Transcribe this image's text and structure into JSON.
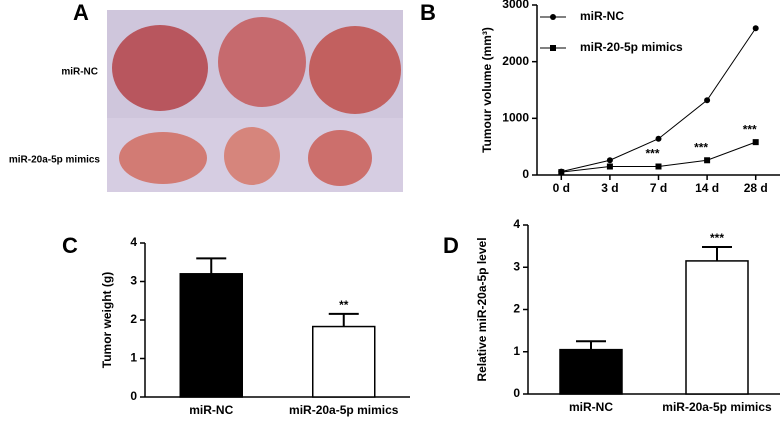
{
  "photo": {
    "panel": "A",
    "row_labels": [
      "miR-NC",
      "miR-20a-5p mimics"
    ]
  },
  "chart_data": [
    {
      "type": "line",
      "panel": "B",
      "y_label": "Tumour volume (mm³)",
      "categories": [
        "0 d",
        "3 d",
        "7 d",
        "14 d",
        "28 d"
      ],
      "series": [
        {
          "name": "miR-NC",
          "color": "#000000",
          "marker": "circle",
          "values": [
            60,
            260,
            640,
            1320,
            2590
          ]
        },
        {
          "name": "miR-20-5p mimics",
          "color": "#000000",
          "marker": "square",
          "values": [
            50,
            150,
            150,
            260,
            580
          ],
          "significance": [
            null,
            null,
            "***",
            "***",
            "***"
          ]
        }
      ],
      "ylim": [
        0,
        3000
      ],
      "yticks": [
        0,
        1000,
        2000,
        3000
      ]
    },
    {
      "type": "bar",
      "panel": "C",
      "y_label": "Tumor weight (g)",
      "categories": [
        "miR-NC",
        "miR-20a-5p mimics"
      ],
      "values": [
        3.2,
        1.83
      ],
      "errors": [
        0.4,
        0.33
      ],
      "colors": [
        "#000000",
        "#ffffff"
      ],
      "significance": [
        null,
        "**"
      ],
      "ylim": [
        0,
        4
      ],
      "yticks": [
        0,
        1,
        2,
        3,
        4
      ]
    },
    {
      "type": "bar",
      "panel": "D",
      "y_label": "Relative miR-20a-5p level",
      "categories": [
        "miR-NC",
        "miR-20a-5p mimics"
      ],
      "values": [
        1.05,
        3.15
      ],
      "errors": [
        0.2,
        0.33
      ],
      "colors": [
        "#000000",
        "#ffffff"
      ],
      "significance": [
        null,
        "***"
      ],
      "ylim": [
        0,
        4
      ],
      "yticks": [
        0,
        1,
        2,
        3,
        4
      ]
    }
  ]
}
